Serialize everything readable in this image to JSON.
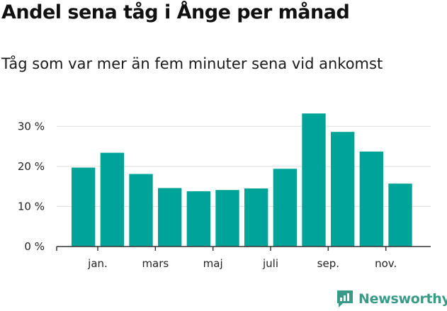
{
  "header": {
    "title": "Andel sena tåg i Ånge per månad",
    "subtitle": "Tåg som var mer än fem minuter sena vid ankomst"
  },
  "brand": {
    "name": "Newsworthy",
    "color": "#3a9a88",
    "icon": "newsworthy-logo-icon"
  },
  "colors": {
    "bar": "#00a398",
    "grid": "#dddddd",
    "axis": "#333333"
  },
  "chart_data": {
    "type": "bar",
    "title": "Andel sena tåg i Ånge per månad",
    "subtitle": "Tåg som var mer än fem minuter sena vid ankomst",
    "xlabel": "",
    "ylabel": "",
    "ylim": [
      0,
      35
    ],
    "yticks": [
      0,
      10,
      20,
      30
    ],
    "ytick_labels": [
      "0 %",
      "10 %",
      "20 %",
      "30 %"
    ],
    "x_tick_labels": [
      "jan.",
      "mars",
      "maj",
      "juli",
      "sep.",
      "nov."
    ],
    "x_tick_label_after_bar": [
      1,
      3,
      5,
      7,
      9,
      11
    ],
    "grid": true,
    "values": [
      19.7,
      23.4,
      18.1,
      14.6,
      13.8,
      14.1,
      14.5,
      19.4,
      33.2,
      28.6,
      23.7,
      15.7
    ]
  }
}
